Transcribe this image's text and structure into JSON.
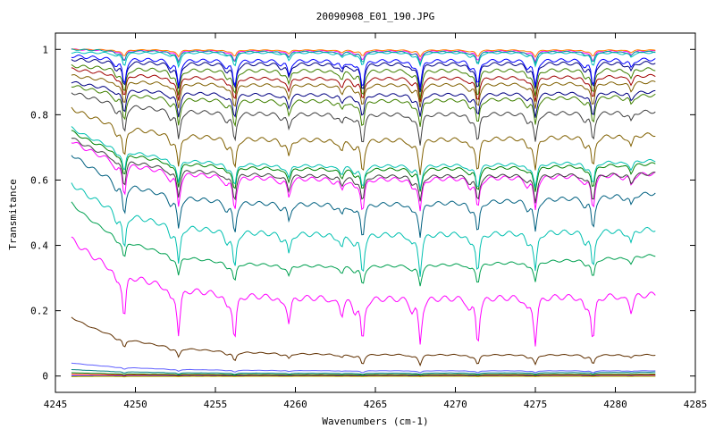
{
  "chart_data": {
    "type": "line",
    "title": "20090908_E01_190.JPG",
    "xlabel": "Wavenumbers (cm-1)",
    "ylabel": "Transmitance",
    "xlim": [
      4245,
      4285
    ],
    "ylim": [
      -0.05,
      1.05
    ],
    "x_ticks": [
      "4245",
      "4250",
      "4255",
      "4260",
      "4265",
      "4270",
      "4275",
      "4280",
      "4285"
    ],
    "y_ticks": [
      "0",
      "0.2",
      "0.4",
      "0.6",
      "0.8",
      "1"
    ],
    "x_range": [
      4246,
      4282.5
    ],
    "absorption_lines": [
      4249.3,
      4252.7,
      4256.2,
      4259.6,
      4262.9,
      4264.2,
      4267.8,
      4271.4,
      4275.0,
      4278.6,
      4281.0
    ],
    "series": [
      {
        "color": "#ff00ff",
        "start": 0.42,
        "baseline": 0.235,
        "end": 0.25,
        "depth": 0.14
      },
      {
        "color": "#00a050",
        "start": 0.53,
        "baseline": 0.33,
        "end": 0.37,
        "depth": 0.06
      },
      {
        "color": "#00c0b0",
        "start": 0.59,
        "baseline": 0.43,
        "end": 0.45,
        "depth": 0.12
      },
      {
        "color": "#006080",
        "start": 0.68,
        "baseline": 0.52,
        "end": 0.56,
        "depth": 0.1
      },
      {
        "color": "#ff00ff",
        "start": 0.72,
        "baseline": 0.6,
        "end": 0.62,
        "depth": 0.1
      },
      {
        "color": "#404040",
        "start": 0.73,
        "baseline": 0.61,
        "end": 0.62,
        "depth": 0.08
      },
      {
        "color": "#008000",
        "start": 0.75,
        "baseline": 0.63,
        "end": 0.65,
        "depth": 0.07
      },
      {
        "color": "#00c0b0",
        "start": 0.76,
        "baseline": 0.64,
        "end": 0.66,
        "depth": 0.07
      },
      {
        "color": "#806000",
        "start": 0.82,
        "baseline": 0.72,
        "end": 0.74,
        "depth": 0.1
      },
      {
        "color": "#404040",
        "start": 0.87,
        "baseline": 0.8,
        "end": 0.81,
        "depth": 0.09
      },
      {
        "color": "#408000",
        "start": 0.89,
        "baseline": 0.84,
        "end": 0.86,
        "depth": 0.08
      },
      {
        "color": "#000080",
        "start": 0.9,
        "baseline": 0.86,
        "end": 0.87,
        "depth": 0.07
      },
      {
        "color": "#806000",
        "start": 0.92,
        "baseline": 0.89,
        "end": 0.9,
        "depth": 0.07
      },
      {
        "color": "#a00000",
        "start": 0.94,
        "baseline": 0.91,
        "end": 0.92,
        "depth": 0.07
      },
      {
        "color": "#408000",
        "start": 0.95,
        "baseline": 0.935,
        "end": 0.94,
        "depth": 0.08
      },
      {
        "color": "#000080",
        "start": 0.97,
        "baseline": 0.955,
        "end": 0.96,
        "depth": 0.08
      },
      {
        "color": "#0000ff",
        "start": 0.98,
        "baseline": 0.965,
        "end": 0.97,
        "depth": 0.08
      },
      {
        "color": "#00c0c0",
        "start": 0.99,
        "baseline": 0.99,
        "end": 0.99,
        "depth": 0.04
      },
      {
        "color": "#ff00ff",
        "start": 1.0,
        "baseline": 0.995,
        "end": 0.995,
        "depth": 0.03
      },
      {
        "color": "#ff8000",
        "start": 1.0,
        "baseline": 0.998,
        "end": 0.998,
        "depth": 0.02
      },
      {
        "color": "#00a0a0",
        "start": 1.0,
        "baseline": 0.993,
        "end": 0.993,
        "depth": 0.035
      },
      {
        "color": "#603000",
        "start": 0.18,
        "baseline": 0.065,
        "end": 0.065,
        "depth": 0.03
      },
      {
        "color": "#6060ff",
        "start": 0.04,
        "baseline": 0.016,
        "end": 0.016,
        "depth": 0.006
      },
      {
        "color": "#008080",
        "start": 0.02,
        "baseline": 0.008,
        "end": 0.012,
        "depth": 0.004
      },
      {
        "color": "#ff0000",
        "start": 0.005,
        "baseline": 0.002,
        "end": 0.003,
        "depth": 0.002
      },
      {
        "color": "#008000",
        "start": 0.01,
        "baseline": 0.004,
        "end": 0.006,
        "depth": 0.002
      },
      {
        "color": "#0000ff",
        "start": 0.0,
        "baseline": 0.0,
        "end": 0.0,
        "depth": 0.001
      },
      {
        "color": "#c0c000",
        "start": -0.002,
        "baseline": -0.001,
        "end": -0.001,
        "depth": 0.001
      }
    ]
  }
}
